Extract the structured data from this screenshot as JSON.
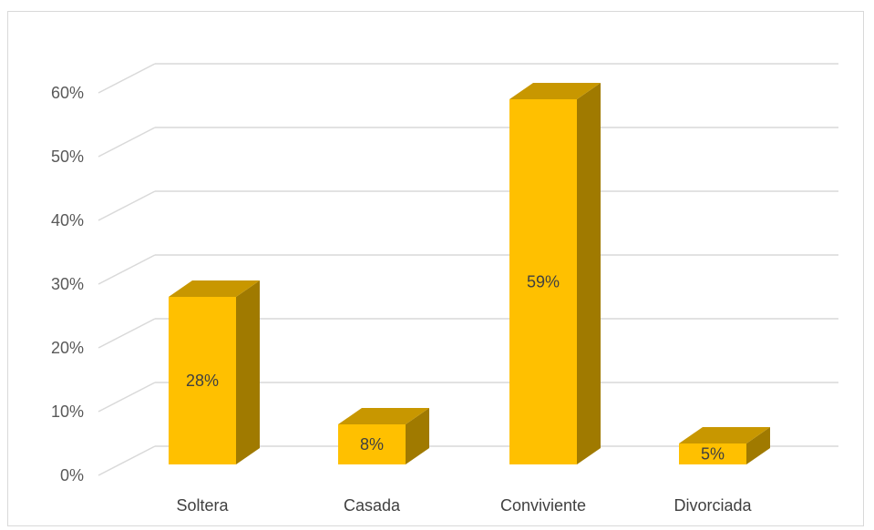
{
  "chart_data": {
    "type": "bar",
    "categories": [
      "Soltera",
      "Casada",
      "Conviviente",
      "Divorciada"
    ],
    "values": [
      28,
      8,
      59,
      5
    ],
    "data_labels": [
      "28%",
      "8%",
      "59%",
      "5%"
    ],
    "yticks": [
      "0%",
      "10%",
      "20%",
      "30%",
      "40%",
      "50%",
      "60%"
    ],
    "ylim": [
      0,
      60
    ],
    "grid": true,
    "legend": "none",
    "style": "3d-column",
    "colors": {
      "front": "#ffc000",
      "top": "#c89700",
      "side": "#a07a00",
      "grid": "#d9d9d9"
    }
  }
}
